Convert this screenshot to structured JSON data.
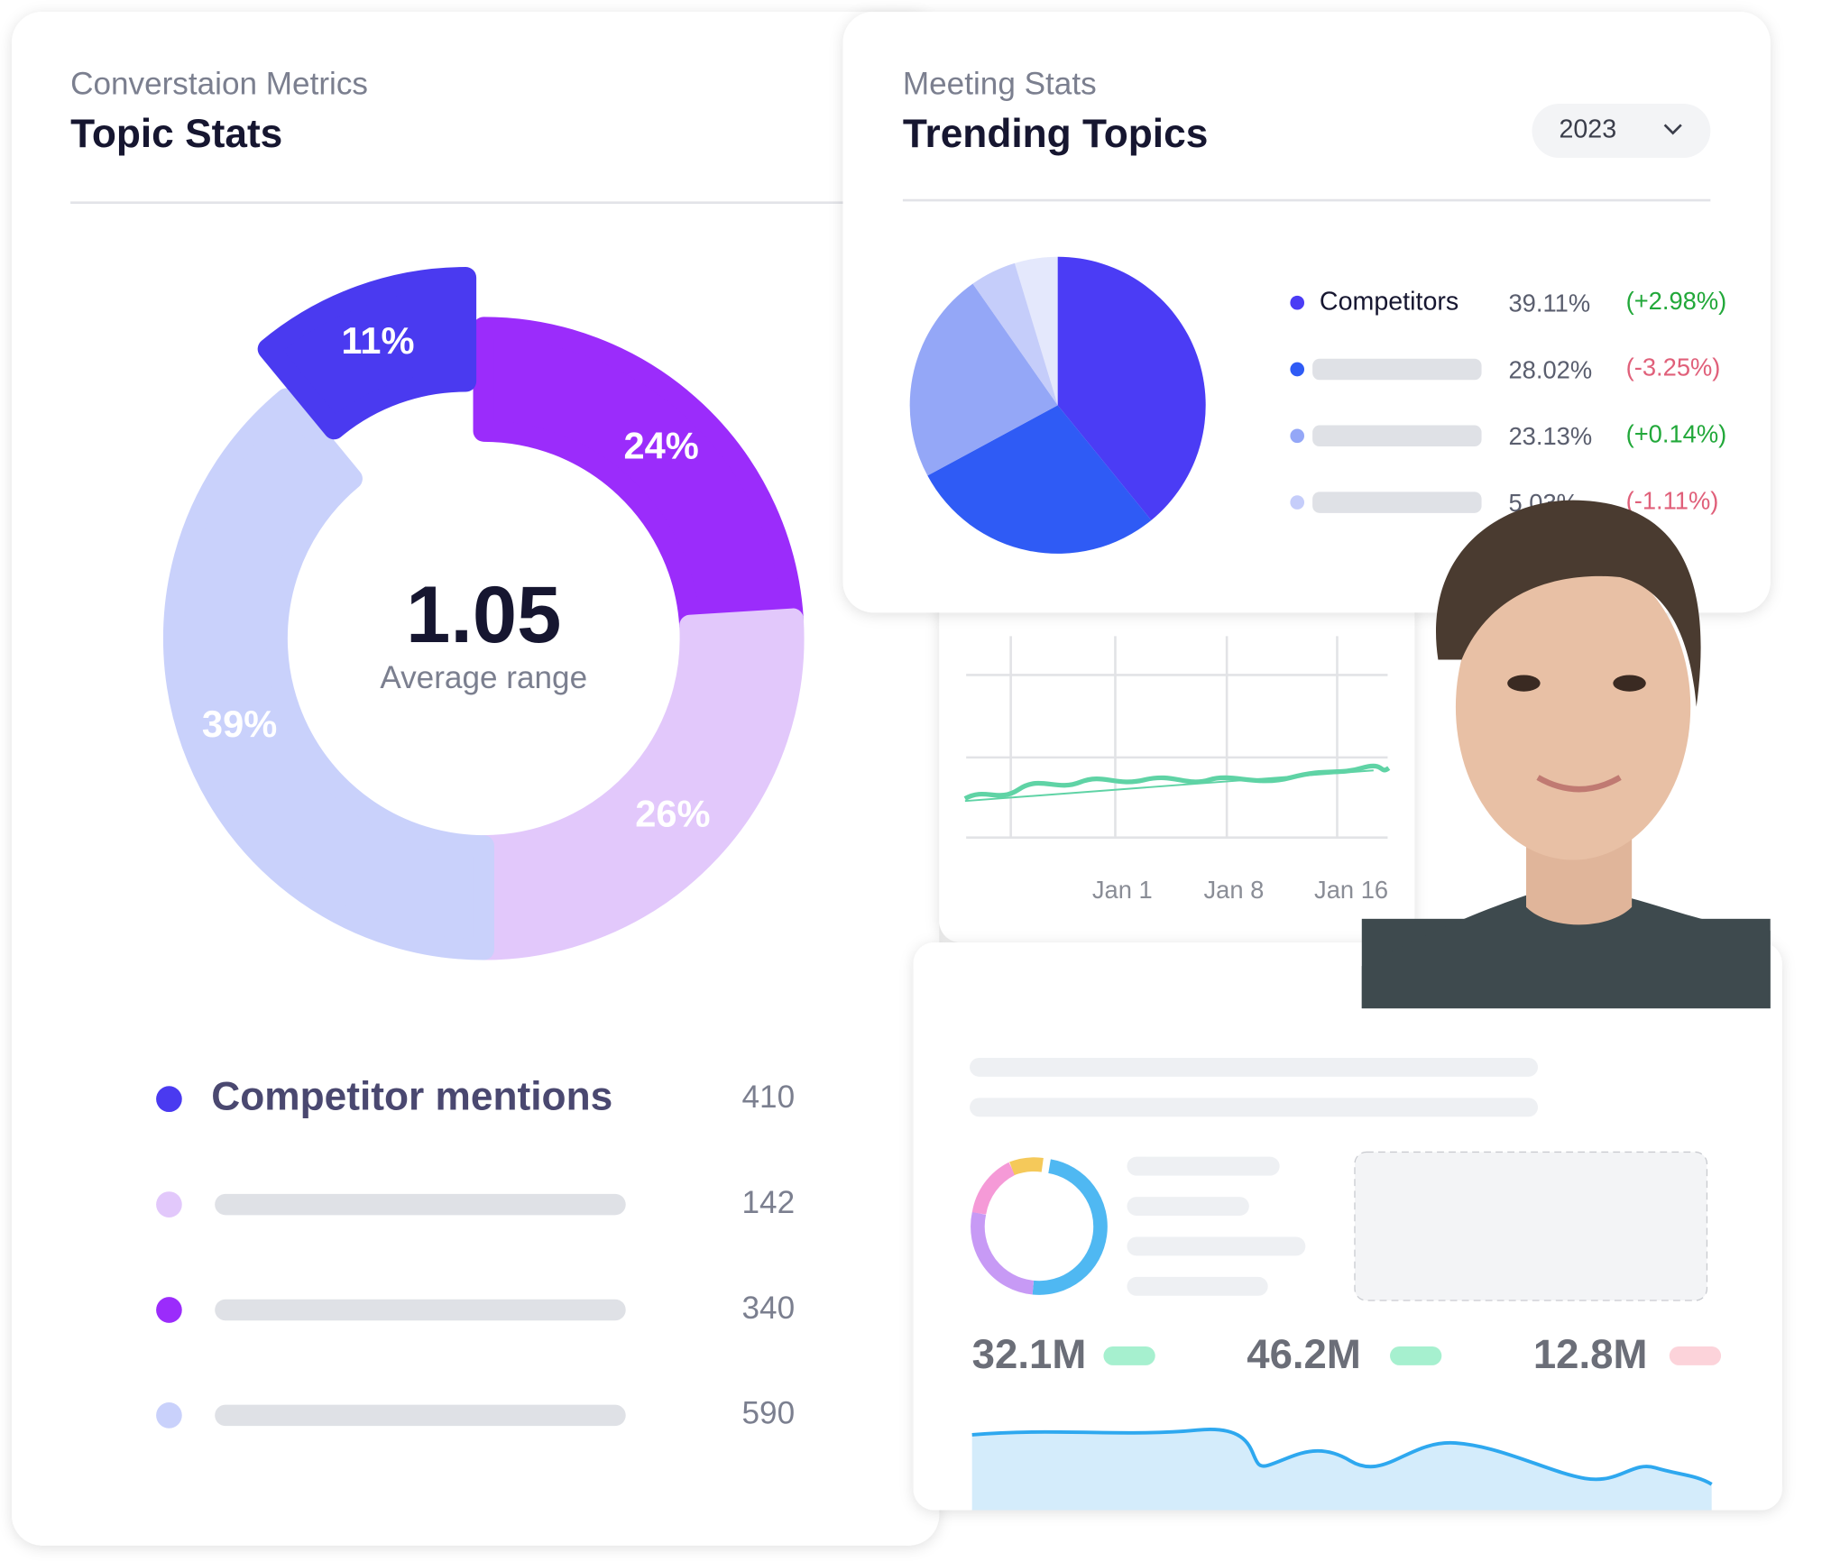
{
  "topic_stats": {
    "subtitle": "Converstaion Metrics",
    "title": "Topic Stats",
    "center_value": "1.05",
    "center_label": "Average range",
    "segments": [
      {
        "value": 24,
        "label": "24%",
        "color": "#9b2cfb"
      },
      {
        "value": 26,
        "label": "26%",
        "color": "#e2c8fb"
      },
      {
        "value": 39,
        "label": "39%",
        "color": "#c9d1fb"
      },
      {
        "value": 11,
        "label": "11%",
        "color": "#4a3af0"
      }
    ],
    "legend": [
      {
        "label": "Competitor mentions",
        "value": 410,
        "color": "#4a3af0"
      },
      {
        "value": 142,
        "color": "#e2c8fb"
      },
      {
        "value": 340,
        "color": "#9b2cfb"
      },
      {
        "value": 590,
        "color": "#c9d1fb"
      }
    ]
  },
  "trending_topics": {
    "subtitle": "Meeting Stats",
    "title": "Trending Topics",
    "year": "2023",
    "slices": [
      {
        "label": "Competitors",
        "value": 39.11,
        "value_label": "39.11%",
        "change": "(+2.98%)",
        "color": "#4b3cf5"
      },
      {
        "value": 28.02,
        "value_label": "28.02%",
        "change": "(-3.25%)",
        "color": "#2f5bf5"
      },
      {
        "value": 23.13,
        "value_label": "23.13%",
        "change": "(+0.14%)",
        "color": "#94a7f7"
      },
      {
        "value": 5.03,
        "value_label": "5.03%",
        "change": "(-1.11%)",
        "color": "#c5cdfa"
      }
    ]
  },
  "timeline": {
    "x_labels": [
      "Jan 1",
      "Jan 8",
      "Jan 16"
    ]
  },
  "summary": {
    "metrics": [
      "32.1M",
      "46.2M",
      "12.8M"
    ]
  }
}
